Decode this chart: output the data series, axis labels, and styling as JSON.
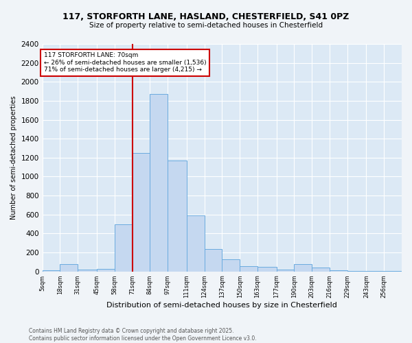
{
  "title1": "117, STORFORTH LANE, HASLAND, CHESTERFIELD, S41 0PZ",
  "title2": "Size of property relative to semi-detached houses in Chesterfield",
  "xlabel": "Distribution of semi-detached houses by size in Chesterfield",
  "ylabel": "Number of semi-detached properties",
  "footnote1": "Contains HM Land Registry data © Crown copyright and database right 2025.",
  "footnote2": "Contains public sector information licensed under the Open Government Licence v3.0.",
  "annotation_title": "117 STORFORTH LANE: 70sqm",
  "annotation_line1": "← 26% of semi-detached houses are smaller (1,536)",
  "annotation_line2": "71% of semi-detached houses are larger (4,215) →",
  "bin_edges": [
    5,
    18,
    31,
    45,
    58,
    71,
    84,
    97,
    111,
    124,
    137,
    150,
    163,
    177,
    190,
    203,
    216,
    229,
    243,
    256,
    269
  ],
  "bar_heights": [
    15,
    75,
    18,
    25,
    500,
    1250,
    1870,
    1170,
    590,
    240,
    125,
    58,
    48,
    22,
    75,
    38,
    12,
    4,
    4,
    4
  ],
  "bar_color": "#c5d8f0",
  "bar_edge_color": "#6aabdf",
  "red_line_x": 71,
  "ylim": [
    0,
    2400
  ],
  "bg_color": "#dce9f5",
  "grid_color": "#ffffff",
  "annotation_box_color": "#ffffff",
  "annotation_box_edge": "#cc0000",
  "red_line_color": "#cc0000",
  "fig_bg": "#f0f4f8"
}
